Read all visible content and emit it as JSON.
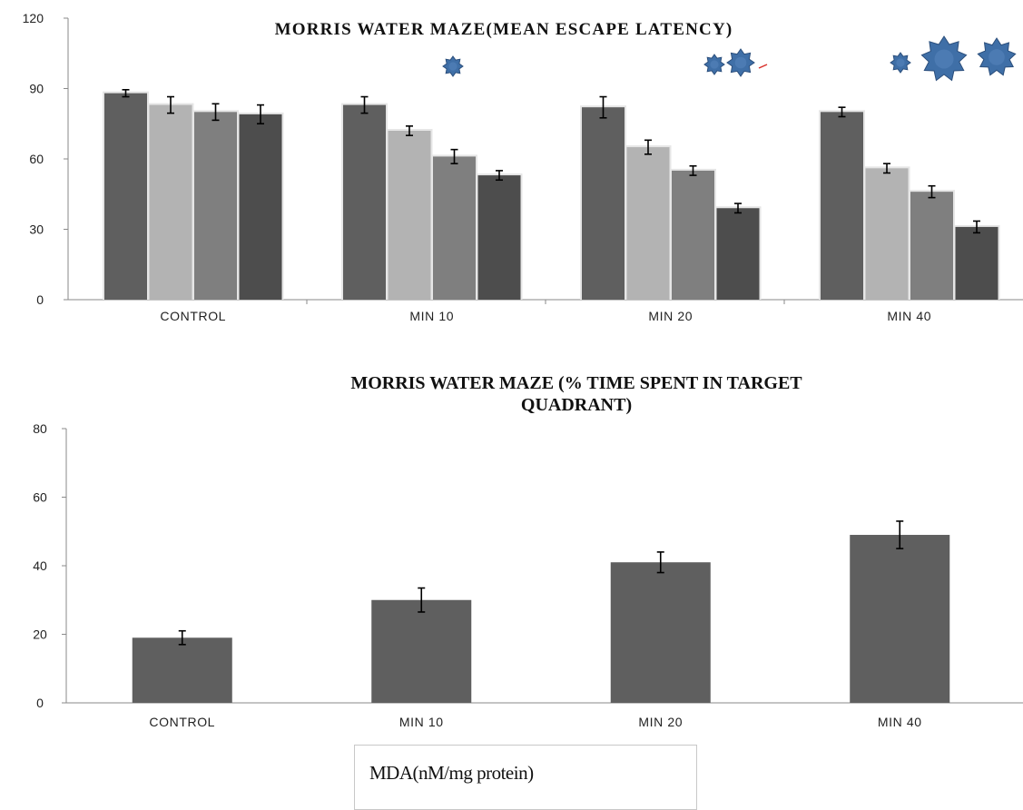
{
  "chart_data": [
    {
      "type": "bar",
      "title": "MORRIS WATER MAZE(MEAN ESCAPE LATENCY)",
      "xlabel": "",
      "ylabel": "",
      "ylim": [
        0,
        120
      ],
      "yticks": [
        "0",
        "30",
        "60",
        "90",
        "120"
      ],
      "categories": [
        "CONTROL",
        "MIN 10",
        "MIN 20",
        "MIN 40"
      ],
      "bars_per_group": 4,
      "bar_colors": [
        "#5f5f5f",
        "#b3b3b3",
        "#7f7f7f",
        "#4d4d4d"
      ],
      "values": [
        [
          88,
          83,
          80,
          79
        ],
        [
          83,
          72,
          61,
          53
        ],
        [
          82,
          65,
          55,
          39
        ],
        [
          80,
          56,
          46,
          31
        ]
      ],
      "errors": [
        [
          3,
          7,
          7,
          8
        ],
        [
          7,
          4,
          6,
          4
        ],
        [
          9,
          6,
          4,
          4
        ],
        [
          4,
          4,
          5,
          5
        ]
      ],
      "grid": false,
      "annotation_icons": [
        {
          "category": "MIN 10",
          "icons": [
            "small-blob-icon"
          ]
        },
        {
          "category": "MIN 20",
          "icons": [
            "small-blob-icon",
            "medium-blob-icon"
          ]
        },
        {
          "category": "MIN 40",
          "icons": [
            "small-blob-icon",
            "large-blob-icon",
            "large-blob-icon"
          ]
        }
      ],
      "icon_color": "#3f6fa7"
    },
    {
      "type": "bar",
      "title": "MORRIS WATER MAZE  (% TIME SPENT IN TARGET QUADRANT)",
      "title_lines": [
        "MORRIS WATER MAZE  (% TIME SPENT IN TARGET",
        "QUADRANT)"
      ],
      "xlabel": "",
      "ylabel": "",
      "ylim": [
        0,
        80
      ],
      "yticks": [
        "0",
        "20",
        "40",
        "60",
        "80"
      ],
      "categories": [
        "CONTROL",
        "MIN 10",
        "MIN 20",
        "MIN 40"
      ],
      "values": [
        19,
        30,
        41,
        49
      ],
      "errors": [
        4,
        7,
        6,
        8
      ],
      "bar_color": "#5f5f5f",
      "grid": false,
      "legend": {
        "label": "MDA(nM/mg protein)",
        "placement": "bottom-center"
      }
    }
  ]
}
